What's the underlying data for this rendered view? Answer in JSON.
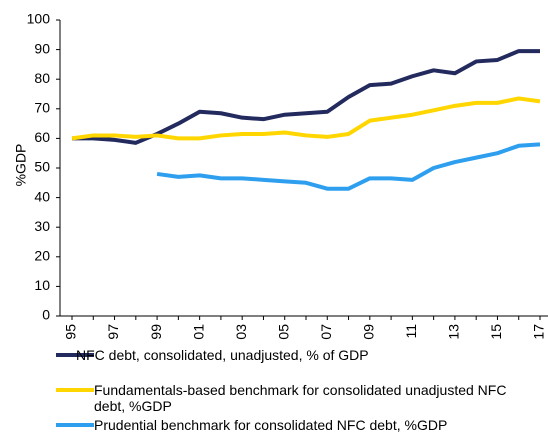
{
  "chart_data": {
    "type": "line",
    "y_label": "%GDP",
    "categories": [
      "95",
      null,
      "97",
      null,
      "99",
      null,
      "01",
      null,
      "03",
      null,
      "05",
      null,
      "07",
      null,
      "09",
      null,
      "11",
      null,
      "13",
      null,
      "15",
      null,
      "17"
    ],
    "ylim": [
      0,
      100
    ],
    "yticks": [
      0,
      10,
      20,
      30,
      40,
      50,
      60,
      70,
      80,
      90,
      100
    ],
    "grid": false,
    "series": [
      {
        "name": "NFC debt, consolidated, unadjusted,  % of GDP",
        "color": "#232a5e",
        "values": [
          60,
          60,
          59.5,
          58.5,
          61.5,
          65,
          69,
          68.5,
          67,
          66.5,
          68,
          68.5,
          69,
          74,
          78,
          78.5,
          81,
          83,
          82,
          86,
          86.5,
          89.5,
          89.5
        ]
      },
      {
        "name": "Fundamentals-based benchmark for consolidated unadjusted NFC debt, %GDP",
        "color": "#ffd600",
        "values": [
          60,
          61,
          61,
          60.5,
          61,
          60,
          60,
          61,
          61.5,
          61.5,
          62,
          61,
          60.5,
          61.5,
          66,
          67,
          68,
          69.5,
          71,
          72,
          72,
          73.5,
          72.5
        ]
      },
      {
        "name": "Prudential benchmark for consolidated NFC debt, %GDP",
        "color": "#2e9fef",
        "values": [
          null,
          null,
          null,
          null,
          48,
          47,
          47.5,
          46.5,
          46.5,
          46,
          45.5,
          45,
          43,
          43,
          46.5,
          46.5,
          46,
          50,
          52,
          53.5,
          55,
          57.5,
          58
        ]
      }
    ]
  }
}
